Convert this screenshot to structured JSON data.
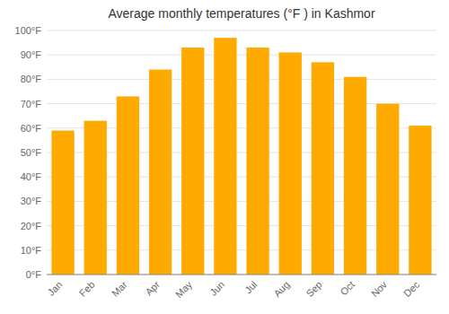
{
  "chart_data": {
    "type": "bar",
    "title": "Average monthly temperatures (°F ) in Kashmor",
    "categories": [
      "Jan",
      "Feb",
      "Mar",
      "Apr",
      "May",
      "Jun",
      "Jul",
      "Aug",
      "Sep",
      "Oct",
      "Nov",
      "Dec"
    ],
    "values": [
      59,
      63,
      73,
      84,
      93,
      97,
      93,
      91,
      87,
      81,
      70,
      61
    ],
    "color": "#FFAA00",
    "ylim": [
      0,
      100
    ],
    "yticks": [
      {
        "value": 0,
        "label": "0°F"
      },
      {
        "value": 10,
        "label": "10°F"
      },
      {
        "value": 20,
        "label": "20°F"
      },
      {
        "value": 30,
        "label": "30°F"
      },
      {
        "value": 40,
        "label": "40°F"
      },
      {
        "value": 50,
        "label": "50°F"
      },
      {
        "value": 60,
        "label": "60°F"
      },
      {
        "value": 70,
        "label": "70°F"
      },
      {
        "value": 80,
        "label": "80°F"
      },
      {
        "value": 90,
        "label": "90°F"
      },
      {
        "value": 100,
        "label": "100°F"
      }
    ],
    "grid": true
  }
}
